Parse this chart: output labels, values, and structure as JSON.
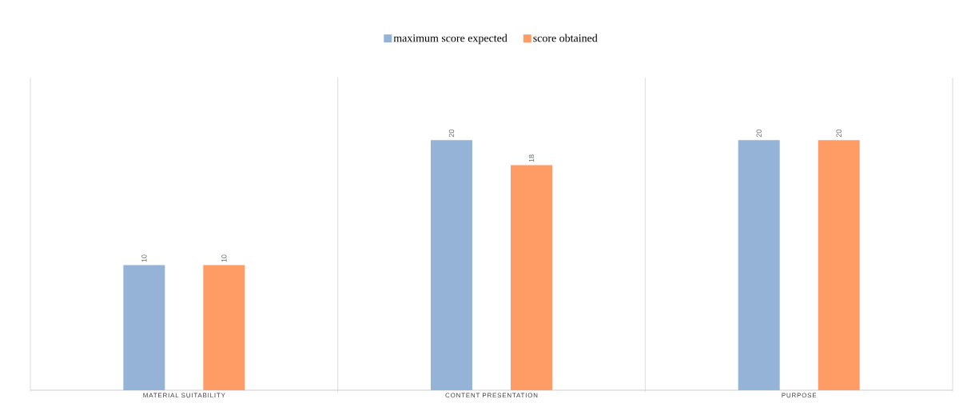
{
  "chart_data": {
    "type": "bar",
    "categories": [
      "MATERIAL SUITABILITY",
      "CONTENT PRESENTATION",
      "PURPOSE"
    ],
    "series": [
      {
        "name": "maximum score expected",
        "color": "#95b3d7",
        "values": [
          10,
          20,
          20
        ]
      },
      {
        "name": "score obtained",
        "color": "#ff9c66",
        "values": [
          10,
          18,
          20
        ]
      }
    ],
    "data_labels": true,
    "grid": "x",
    "legend": "top"
  }
}
